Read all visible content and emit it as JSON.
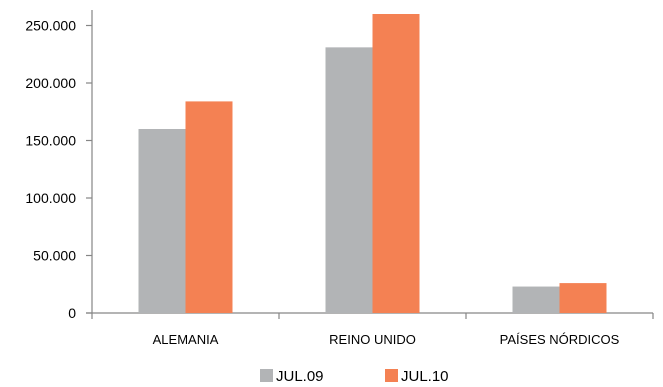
{
  "chart_data": {
    "type": "bar",
    "categories": [
      "ALEMANIA",
      "REINO UNIDO",
      "PAÍSES NÓRDICOS"
    ],
    "series": [
      {
        "name": "JUL.09",
        "values": [
          160000,
          231000,
          23000
        ],
        "color": "#b2b4b6"
      },
      {
        "name": "JUL.10",
        "values": [
          184000,
          260000,
          26000
        ],
        "color": "#f48153"
      }
    ],
    "ylim": [
      0,
      260000
    ],
    "yticks": [
      0,
      50000,
      100000,
      150000,
      200000,
      250000
    ],
    "ytick_labels": [
      "0",
      "50.000",
      "100.000",
      "150.000",
      "200.000",
      "250.000"
    ],
    "grid": false,
    "legend": "bottom",
    "title": "",
    "xlabel": "",
    "ylabel": ""
  }
}
